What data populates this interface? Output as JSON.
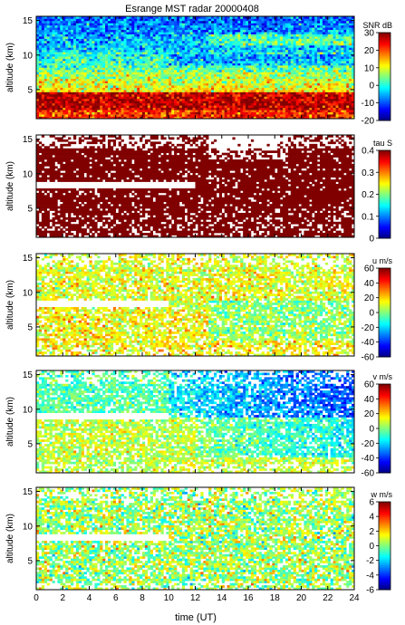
{
  "figure": {
    "title": "Esrange MST radar 20000408",
    "xlabel": "time (UT)"
  },
  "chart_data": [
    {
      "type": "heatmap",
      "panel": "snr",
      "x_range": [
        0,
        24
      ],
      "x_ticks": [
        "0",
        "2",
        "4",
        "6",
        "8",
        "10",
        "12",
        "14",
        "16",
        "18",
        "20",
        "22",
        "24"
      ],
      "ylabel": "altitude (km)",
      "y_range": [
        0.8,
        15.6
      ],
      "y_ticks": [
        "5",
        "10",
        "15"
      ],
      "colorbar": {
        "label": "SNR dB",
        "range": [
          -20,
          30
        ],
        "ticks": [
          "30",
          "20",
          "10",
          "0",
          "-10",
          "-20"
        ],
        "colormap": "jet"
      },
      "features": [
        {
          "alt_from": 0.8,
          "alt_to": 2.2,
          "level_db": 22
        },
        {
          "alt_from": 2.2,
          "alt_to": 4.8,
          "level_db": 26
        },
        {
          "alt_from": 4.8,
          "alt_to": 7.5,
          "level_db": 12
        },
        {
          "alt_from": 7.5,
          "alt_to": 10.5,
          "level_db": 2
        },
        {
          "alt_from": 10.5,
          "alt_to": 15.6,
          "level_db": -4
        }
      ]
    },
    {
      "type": "heatmap",
      "panel": "tau",
      "x_range": [
        0,
        24
      ],
      "x_ticks": [
        "0",
        "2",
        "4",
        "6",
        "8",
        "10",
        "12",
        "14",
        "16",
        "18",
        "20",
        "22",
        "24"
      ],
      "ylabel": "altitude (km)",
      "y_range": [
        0.8,
        15.6
      ],
      "y_ticks": [
        "5",
        "10",
        "15"
      ],
      "colorbar": {
        "label": "tau S",
        "range": [
          0,
          0.4
        ],
        "ticks": [
          "0.4",
          "0.3",
          "0.2",
          "0.1",
          "0"
        ],
        "colormap": "jet"
      },
      "fill_value": 0.4,
      "gap_altitude_km": 8.3
    },
    {
      "type": "heatmap",
      "panel": "u",
      "x_range": [
        0,
        24
      ],
      "x_ticks": [
        "0",
        "2",
        "4",
        "6",
        "8",
        "10",
        "12",
        "14",
        "16",
        "18",
        "20",
        "22",
        "24"
      ],
      "ylabel": "altitude (km)",
      "y_range": [
        0.8,
        15.6
      ],
      "y_ticks": [
        "5",
        "10",
        "15"
      ],
      "colorbar": {
        "label": "u m/s",
        "range": [
          -60,
          60
        ],
        "ticks": [
          "60",
          "40",
          "20",
          "0",
          "-20",
          "-40",
          "-60"
        ],
        "colormap": "jet"
      },
      "gap_altitude_km": 8.3
    },
    {
      "type": "heatmap",
      "panel": "v",
      "x_range": [
        0,
        24
      ],
      "x_ticks": [
        "0",
        "2",
        "4",
        "6",
        "8",
        "10",
        "12",
        "14",
        "16",
        "18",
        "20",
        "22",
        "24"
      ],
      "ylabel": "altitude (km)",
      "y_range": [
        0.8,
        15.6
      ],
      "y_ticks": [
        "5",
        "10",
        "15"
      ],
      "colorbar": {
        "label": "v m/s",
        "range": [
          -60,
          60
        ],
        "ticks": [
          "60",
          "40",
          "20",
          "0",
          "-20",
          "-40",
          "-60"
        ],
        "colormap": "jet"
      },
      "gap_altitude_km": 9.0
    },
    {
      "type": "heatmap",
      "panel": "w",
      "x_range": [
        0,
        24
      ],
      "x_ticks": [
        "0",
        "2",
        "4",
        "6",
        "8",
        "10",
        "12",
        "14",
        "16",
        "18",
        "20",
        "22",
        "24"
      ],
      "ylabel": "altitude (km)",
      "y_range": [
        0.8,
        15.6
      ],
      "y_ticks": [
        "5",
        "10",
        "15"
      ],
      "colorbar": {
        "label": "w m/s",
        "range": [
          -6,
          6
        ],
        "ticks": [
          "6",
          "4",
          "2",
          "0",
          "-2",
          "-4",
          "-6"
        ],
        "colormap": "jet"
      },
      "gap_altitude_km": 8.3
    }
  ]
}
